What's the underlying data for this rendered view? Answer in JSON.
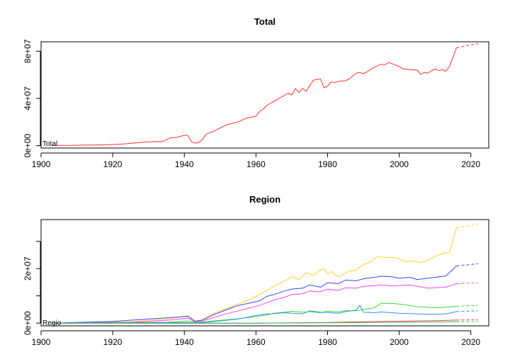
{
  "chart_data": [
    {
      "type": "line",
      "title": "Total",
      "xlabel": "",
      "ylabel": "",
      "xlim": [
        1900,
        2025
      ],
      "ylim": [
        -2000000,
        88000000
      ],
      "x_ticks": [
        1900,
        1920,
        1940,
        1960,
        1980,
        2000,
        2020
      ],
      "y_ticks": [
        0,
        40000000,
        80000000
      ],
      "y_tick_labels": [
        "0e+00",
        "4e+07",
        "8e+07"
      ],
      "inline_label": "Total",
      "series": [
        {
          "color": "#ff3030",
          "x": [
            1903,
            1908,
            1913,
            1918,
            1923,
            1928,
            1930,
            1934,
            1936,
            1938,
            1940,
            1941,
            1942,
            1943,
            1944,
            1945,
            1946,
            1947,
            1948,
            1950,
            1952,
            1955,
            1957,
            1960,
            1961,
            1962,
            1963,
            1965,
            1967,
            1969,
            1970,
            1971,
            1972,
            1973,
            1974,
            1976,
            1977,
            1978,
            1979,
            1980,
            1981,
            1982,
            1983,
            1985,
            1986,
            1988,
            1989,
            1990,
            1991,
            1993,
            1995,
            1996,
            1997,
            1998,
            2000,
            2001,
            2003,
            2005,
            2006,
            2007,
            2008,
            2009,
            2010,
            2011,
            2012,
            2013,
            2014,
            2016
          ],
          "y": [
            200000,
            300000,
            500000,
            700000,
            1500000,
            2800000,
            3200000,
            3600000,
            6500000,
            7200000,
            8800000,
            8500000,
            3200000,
            2200000,
            2700000,
            5000000,
            9500000,
            11000000,
            12000000,
            15000000,
            18000000,
            20000000,
            23000000,
            25000000,
            29000000,
            31000000,
            34000000,
            37500000,
            41000000,
            44500000,
            43000000,
            48500000,
            45000000,
            48500000,
            46000000,
            55500000,
            56000000,
            56500000,
            49000000,
            50500000,
            54000000,
            53500000,
            54500000,
            55000000,
            56500000,
            61500000,
            62000000,
            61000000,
            62500000,
            66500000,
            69000000,
            68500000,
            70500000,
            69500000,
            67000000,
            65000000,
            64500000,
            64000000,
            60500000,
            62000000,
            61500000,
            63500000,
            65000000,
            63500000,
            64500000,
            63000000,
            67000000,
            83000000
          ]
        },
        {
          "color": "#ff3030",
          "dashed": true,
          "x": [
            2016,
            2022
          ],
          "y": [
            83000000,
            86500000
          ]
        }
      ]
    },
    {
      "type": "line",
      "title": "Region",
      "xlabel": "",
      "ylabel": "",
      "xlim": [
        1900,
        2025
      ],
      "ylim": [
        -1000000,
        38000000
      ],
      "x_ticks": [
        1900,
        1920,
        1940,
        1960,
        1980,
        2000,
        2020
      ],
      "y_ticks": [
        0,
        20000000
      ],
      "y_tick_labels": [
        "0e+00",
        "2e+07"
      ],
      "minor_y_ticks": [
        10000000,
        30000000
      ],
      "inline_label": "Regio",
      "series": [
        {
          "color": "#ffd02a",
          "x": [
            1903,
            1925,
            1935,
            1941,
            1943,
            1945,
            1948,
            1952,
            1955,
            1958,
            1961,
            1963,
            1965,
            1968,
            1970,
            1972,
            1974,
            1976,
            1978,
            1979,
            1980,
            1981,
            1983,
            1986,
            1988,
            1990,
            1992,
            1994,
            1996,
            1998,
            2000,
            2002,
            2004,
            2006,
            2008,
            2010,
            2012,
            2014,
            2016
          ],
          "y": [
            0,
            500000,
            1500000,
            2700000,
            800000,
            1200000,
            3500000,
            5500000,
            7000000,
            8500000,
            10500000,
            12000000,
            13500000,
            15500000,
            17000000,
            16000000,
            18500000,
            17500000,
            19500000,
            20000000,
            18000000,
            19000000,
            17000000,
            19000000,
            19500000,
            21500000,
            22500000,
            24500000,
            24000000,
            24200000,
            23500000,
            22500000,
            22800000,
            22200000,
            23000000,
            24500000,
            25500000,
            26000000,
            35000000
          ]
        },
        {
          "color": "#4040ff",
          "x": [
            1903,
            1920,
            1930,
            1935,
            1938,
            1941,
            1943,
            1945,
            1948,
            1952,
            1955,
            1958,
            1961,
            1963,
            1965,
            1968,
            1970,
            1973,
            1975,
            1978,
            1980,
            1983,
            1985,
            1988,
            1990,
            1993,
            1995,
            1998,
            2000,
            2003,
            2005,
            2008,
            2010,
            2013,
            2016
          ],
          "y": [
            0,
            600000,
            1500000,
            1900000,
            2200000,
            2500000,
            700000,
            1100000,
            3000000,
            5000000,
            6500000,
            7300000,
            8200000,
            9800000,
            10500000,
            11800000,
            12500000,
            12800000,
            14000000,
            13200000,
            14800000,
            14500000,
            15800000,
            15500000,
            16300000,
            16800000,
            17200000,
            17000000,
            16500000,
            16800000,
            16000000,
            16500000,
            16800000,
            17300000,
            21000000
          ]
        },
        {
          "color": "#ff40ff",
          "x": [
            1903,
            1925,
            1935,
            1941,
            1943,
            1945,
            1948,
            1952,
            1955,
            1958,
            1961,
            1963,
            1965,
            1968,
            1970,
            1973,
            1975,
            1978,
            1980,
            1983,
            1985,
            1988,
            1990,
            1993,
            1995,
            1998,
            2000,
            2003,
            2005,
            2008,
            2010,
            2013,
            2016
          ],
          "y": [
            0,
            300000,
            1000000,
            1800000,
            500000,
            800000,
            2000000,
            3500000,
            4500000,
            5500000,
            6500000,
            7500000,
            8500000,
            9500000,
            10500000,
            10800000,
            11800000,
            11500000,
            12500000,
            12000000,
            13000000,
            12800000,
            13500000,
            13800000,
            14000000,
            13600000,
            13800000,
            14000000,
            13500000,
            12800000,
            13000000,
            13200000,
            14500000
          ]
        },
        {
          "color": "#30e030",
          "x": [
            1903,
            1935,
            1941,
            1943,
            1945,
            1950,
            1955,
            1960,
            1963,
            1965,
            1968,
            1970,
            1973,
            1975,
            1978,
            1980,
            1983,
            1985,
            1988,
            1990,
            1993,
            1995,
            1998,
            2000,
            2003,
            2005,
            2008,
            2010,
            2013,
            2016
          ],
          "y": [
            0,
            300000,
            800000,
            300000,
            400000,
            1000000,
            1600000,
            2400000,
            3000000,
            3600000,
            4000000,
            4300000,
            4000000,
            4200000,
            3800000,
            4400000,
            4100000,
            4600000,
            4500000,
            5000000,
            5600000,
            7300000,
            7200000,
            7000000,
            6500000,
            6000000,
            5800000,
            5600000,
            5800000,
            6200000
          ]
        },
        {
          "color": "#3090ff",
          "x": [
            1903,
            1940,
            1943,
            1945,
            1950,
            1955,
            1960,
            1962,
            1965,
            1968,
            1970,
            1973,
            1975,
            1978,
            1980,
            1983,
            1985,
            1988,
            1989,
            1990,
            1993,
            1995,
            1998,
            2000,
            2003,
            2005,
            2008,
            2010,
            2013,
            2016
          ],
          "y": [
            0,
            200000,
            100000,
            200000,
            800000,
            1500000,
            2800000,
            3200000,
            3500000,
            3800000,
            3600000,
            3400000,
            4500000,
            4000000,
            3900000,
            3600000,
            4200000,
            4800000,
            6500000,
            4000000,
            3800000,
            4100000,
            3800000,
            3600000,
            3500000,
            3400000,
            3300000,
            3200000,
            3400000,
            4200000
          ]
        },
        {
          "color": "#e84040",
          "x": [
            1903,
            1960,
            1970,
            1980,
            1990,
            2000,
            2010,
            2016
          ],
          "y": [
            0,
            0,
            100000,
            200000,
            500000,
            700000,
            900000,
            1100000
          ]
        },
        {
          "color": "#30c060",
          "x": [
            1903,
            1960,
            1970,
            1980,
            1990,
            2000,
            2010,
            2016
          ],
          "y": [
            0,
            0,
            50000,
            100000,
            200000,
            300000,
            400000,
            500000
          ]
        },
        {
          "color": "#ffd02a",
          "dashed": true,
          "x": [
            2016,
            2022
          ],
          "y": [
            35000000,
            36300000
          ]
        },
        {
          "color": "#4040ff",
          "dashed": true,
          "x": [
            2016,
            2022
          ],
          "y": [
            21000000,
            21800000
          ]
        },
        {
          "color": "#ff40ff",
          "dashed": true,
          "x": [
            2016,
            2022
          ],
          "y": [
            14500000,
            14800000
          ]
        },
        {
          "color": "#30e030",
          "dashed": true,
          "x": [
            2016,
            2022
          ],
          "y": [
            6200000,
            6500000
          ]
        },
        {
          "color": "#3090ff",
          "dashed": true,
          "x": [
            2016,
            2022
          ],
          "y": [
            4200000,
            4500000
          ]
        },
        {
          "color": "#e84040",
          "dashed": true,
          "x": [
            2016,
            2022
          ],
          "y": [
            1100000,
            1300000
          ]
        },
        {
          "color": "#30c060",
          "dashed": true,
          "x": [
            2016,
            2022
          ],
          "y": [
            500000,
            600000
          ]
        }
      ]
    }
  ]
}
